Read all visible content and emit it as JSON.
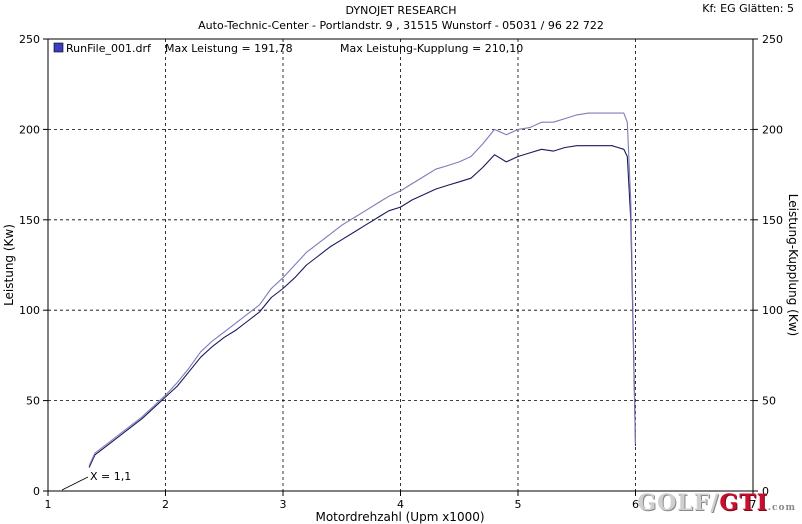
{
  "header": {
    "title": "DYNOJET RESEARCH",
    "subtitle": "Auto-Technic-Center - Portlandstr. 9 , 31515 Wunstorf - 05031 / 96 22 722",
    "settings": "Kf: EG  Glätten: 5"
  },
  "legend": {
    "file": "RunFile_001.drf",
    "max_power": "Max Leistung = 191,78",
    "max_clutch": "Max Leistung-Kupplung = 210,10"
  },
  "annotation": "X = 1,1",
  "watermark": {
    "part1": "GOLF",
    "part2": "GTI",
    "part3": ".com"
  },
  "colors": {
    "power": "#1a1a5e",
    "clutch": "#7d7db8",
    "grid": "#000000"
  },
  "chart_data": {
    "type": "line",
    "xlabel": "Motordrehzahl (Upm x1000)",
    "ylabel": "Leistung (Kw)",
    "ylabel_right": "Leistung-Kupplung (Kw)",
    "xlim": [
      1,
      7
    ],
    "ylim": [
      0,
      250
    ],
    "x_ticks": [
      1,
      2,
      3,
      4,
      5,
      6,
      7
    ],
    "y_ticks": [
      0,
      50,
      100,
      150,
      200,
      250
    ],
    "grid": true,
    "series": [
      {
        "name": "Leistung",
        "x": [
          1.35,
          1.4,
          1.5,
          1.6,
          1.7,
          1.8,
          1.9,
          2.0,
          2.1,
          2.2,
          2.3,
          2.4,
          2.5,
          2.6,
          2.7,
          2.8,
          2.9,
          3.0,
          3.1,
          3.2,
          3.3,
          3.4,
          3.5,
          3.6,
          3.7,
          3.8,
          3.9,
          4.0,
          4.1,
          4.2,
          4.3,
          4.4,
          4.5,
          4.6,
          4.7,
          4.8,
          4.9,
          5.0,
          5.1,
          5.2,
          5.3,
          5.4,
          5.5,
          5.6,
          5.7,
          5.8,
          5.85,
          5.9,
          5.93,
          5.96,
          6.0
        ],
        "y": [
          13,
          20,
          25,
          30,
          35,
          40,
          46,
          52,
          58,
          66,
          74,
          80,
          85,
          89,
          94,
          99,
          107,
          112,
          118,
          125,
          130,
          135,
          139,
          143,
          147,
          151,
          155,
          157,
          161,
          164,
          167,
          169,
          171,
          173,
          179,
          186,
          182,
          185,
          187,
          189,
          188,
          190,
          191,
          191,
          191,
          191,
          190,
          189,
          185,
          150,
          25
        ]
      },
      {
        "name": "Leistung-Kupplung",
        "x": [
          1.35,
          1.4,
          1.5,
          1.6,
          1.7,
          1.8,
          1.9,
          2.0,
          2.1,
          2.2,
          2.3,
          2.4,
          2.5,
          2.6,
          2.7,
          2.8,
          2.9,
          3.0,
          3.1,
          3.2,
          3.3,
          3.4,
          3.5,
          3.6,
          3.7,
          3.8,
          3.9,
          4.0,
          4.1,
          4.2,
          4.3,
          4.4,
          4.5,
          4.6,
          4.7,
          4.8,
          4.9,
          5.0,
          5.1,
          5.2,
          5.3,
          5.4,
          5.5,
          5.6,
          5.7,
          5.8,
          5.85,
          5.9,
          5.93,
          5.96,
          6.0
        ],
        "y": [
          14,
          21,
          26,
          31,
          36,
          41,
          47,
          53,
          60,
          68,
          77,
          83,
          88,
          93,
          98,
          103,
          112,
          118,
          125,
          132,
          137,
          142,
          147,
          151,
          155,
          159,
          163,
          166,
          170,
          174,
          178,
          180,
          182,
          185,
          192,
          200,
          197,
          200,
          201,
          204,
          204,
          206,
          208,
          209,
          209,
          209,
          209,
          209,
          204,
          160,
          26
        ]
      }
    ]
  }
}
